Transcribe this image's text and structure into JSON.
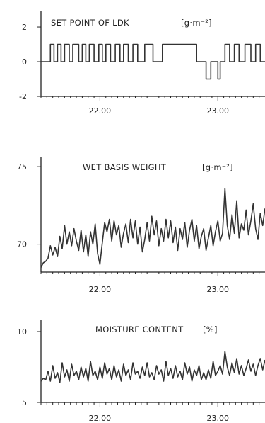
{
  "chart_data": [
    {
      "type": "line",
      "title": "SET POINT OF LDK",
      "unit": "[g·m⁻²]",
      "ylim": [
        -2,
        2.9
      ],
      "yticks": [
        2,
        0,
        -2
      ],
      "xlim": [
        21.5,
        23.4
      ],
      "xticks": [
        "22.00",
        "23.00"
      ],
      "xtick_values": [
        22.0,
        23.0
      ],
      "series": [
        {
          "x": [
            21.5,
            21.58,
            21.58,
            21.61,
            21.61,
            21.64,
            21.64,
            21.67,
            21.67,
            21.7,
            21.7,
            21.74,
            21.74,
            21.77,
            21.77,
            21.82,
            21.82,
            21.85,
            21.85,
            21.88,
            21.88,
            21.91,
            21.91,
            21.95,
            21.95,
            21.99,
            21.99,
            22.02,
            22.02,
            22.05,
            22.05,
            22.09,
            22.09,
            22.13,
            22.13,
            22.17,
            22.17,
            22.2,
            22.2,
            22.24,
            22.24,
            22.28,
            22.28,
            22.32,
            22.32,
            22.38,
            22.38,
            22.45,
            22.45,
            22.53,
            22.53,
            22.82,
            22.82,
            22.9,
            22.9,
            22.94,
            22.94,
            23.0,
            23.0,
            23.02,
            23.02,
            23.06,
            23.06,
            23.1,
            23.1,
            23.14,
            23.14,
            23.18,
            23.18,
            23.23,
            23.23,
            23.28,
            23.28,
            23.32,
            23.32,
            23.36,
            23.36,
            23.4
          ],
          "values": [
            0,
            0,
            1,
            1,
            0,
            0,
            1,
            1,
            0,
            0,
            1,
            1,
            0,
            0,
            1,
            1,
            0,
            0,
            1,
            1,
            0,
            0,
            1,
            1,
            0,
            0,
            1,
            1,
            0,
            0,
            1,
            1,
            0,
            0,
            1,
            1,
            0,
            0,
            1,
            1,
            0,
            0,
            1,
            1,
            0,
            0,
            1,
            1,
            0,
            0,
            1,
            1,
            0,
            0,
            -1,
            -1,
            0,
            0,
            -1,
            -1,
            0,
            0,
            1,
            1,
            0,
            0,
            1,
            1,
            0,
            0,
            1,
            1,
            0,
            0,
            1,
            1,
            0,
            0
          ]
        }
      ]
    },
    {
      "type": "line",
      "title": "WET BASIS WEIGHT",
      "unit": "[g·m⁻²]",
      "ylim": [
        68.2,
        75.6
      ],
      "yticks": [
        75,
        70
      ],
      "xlim": [
        21.5,
        23.4
      ],
      "xticks": [
        "22.00",
        "23.00"
      ],
      "xtick_values": [
        22.0,
        23.0
      ],
      "series": [
        {
          "x": [
            21.5,
            21.52,
            21.54,
            21.56,
            21.58,
            21.6,
            21.62,
            21.64,
            21.66,
            21.68,
            21.7,
            21.72,
            21.74,
            21.76,
            21.78,
            21.8,
            21.82,
            21.84,
            21.86,
            21.88,
            21.9,
            21.92,
            21.94,
            21.96,
            21.98,
            22.0,
            22.02,
            22.04,
            22.06,
            22.08,
            22.1,
            22.12,
            22.14,
            22.16,
            22.18,
            22.2,
            22.22,
            22.24,
            22.26,
            22.28,
            22.3,
            22.32,
            22.34,
            22.36,
            22.38,
            22.4,
            22.42,
            22.44,
            22.46,
            22.48,
            22.5,
            22.52,
            22.54,
            22.56,
            22.58,
            22.6,
            22.62,
            22.64,
            22.66,
            22.68,
            22.7,
            22.72,
            22.74,
            22.76,
            22.78,
            22.8,
            22.82,
            22.84,
            22.86,
            22.88,
            22.9,
            22.92,
            22.94,
            22.96,
            22.98,
            23.0,
            23.02,
            23.04,
            23.06,
            23.08,
            23.1,
            23.12,
            23.14,
            23.16,
            23.18,
            23.2,
            23.22,
            23.24,
            23.26,
            23.28,
            23.3,
            23.32,
            23.34,
            23.36,
            23.38,
            23.4
          ],
          "values": [
            68.5,
            68.8,
            68.9,
            69.1,
            69.9,
            69.3,
            69.8,
            69.2,
            70.5,
            69.7,
            71.2,
            70.0,
            70.8,
            69.9,
            71.0,
            70.2,
            69.6,
            70.9,
            69.5,
            70.6,
            69.2,
            70.8,
            70.0,
            71.3,
            69.4,
            68.7,
            70.1,
            71.4,
            70.8,
            71.6,
            70.2,
            71.5,
            70.6,
            71.2,
            69.8,
            70.7,
            71.3,
            70.1,
            71.6,
            70.4,
            71.5,
            70.0,
            71.1,
            69.5,
            70.3,
            71.4,
            70.2,
            71.8,
            70.6,
            71.5,
            69.9,
            71.0,
            70.2,
            71.6,
            70.4,
            71.5,
            70.1,
            71.1,
            69.6,
            71.0,
            70.3,
            71.4,
            69.8,
            70.9,
            71.6,
            70.2,
            71.2,
            69.7,
            70.5,
            71.0,
            69.6,
            70.4,
            71.2,
            69.9,
            70.8,
            71.5,
            70.2,
            70.7,
            73.6,
            71.2,
            70.3,
            71.9,
            70.7,
            72.8,
            70.4,
            71.3,
            70.9,
            72.2,
            70.6,
            71.5,
            72.6,
            71.0,
            70.3,
            72.0,
            71.2,
            72.3
          ]
        }
      ]
    },
    {
      "type": "line",
      "title": "MOISTURE CONTENT",
      "unit": "[%]",
      "ylim": [
        5,
        10.8
      ],
      "yticks": [
        10,
        5
      ],
      "xlim": [
        21.5,
        23.4
      ],
      "xticks": [
        "22.00",
        "23.00"
      ],
      "xtick_values": [
        22.0,
        23.0
      ],
      "series": [
        {
          "x": [
            21.5,
            21.52,
            21.54,
            21.56,
            21.58,
            21.6,
            21.62,
            21.64,
            21.66,
            21.68,
            21.7,
            21.72,
            21.74,
            21.76,
            21.78,
            21.8,
            21.82,
            21.84,
            21.86,
            21.88,
            21.9,
            21.92,
            21.94,
            21.96,
            21.98,
            22.0,
            22.02,
            22.04,
            22.06,
            22.08,
            22.1,
            22.12,
            22.14,
            22.16,
            22.18,
            22.2,
            22.22,
            22.24,
            22.26,
            22.28,
            22.3,
            22.32,
            22.34,
            22.36,
            22.38,
            22.4,
            22.42,
            22.44,
            22.46,
            22.48,
            22.5,
            22.52,
            22.54,
            22.56,
            22.58,
            22.6,
            22.62,
            22.64,
            22.66,
            22.68,
            22.7,
            22.72,
            22.74,
            22.76,
            22.78,
            22.8,
            22.82,
            22.84,
            22.86,
            22.88,
            22.9,
            22.92,
            22.94,
            22.96,
            22.98,
            23.0,
            23.02,
            23.04,
            23.06,
            23.08,
            23.1,
            23.12,
            23.14,
            23.16,
            23.18,
            23.2,
            23.22,
            23.24,
            23.26,
            23.28,
            23.3,
            23.32,
            23.34,
            23.36,
            23.38,
            23.4
          ],
          "values": [
            6.5,
            6.7,
            6.6,
            7.2,
            6.5,
            7.6,
            6.7,
            7.1,
            6.4,
            7.8,
            6.8,
            7.3,
            6.5,
            7.7,
            6.9,
            7.2,
            6.6,
            7.5,
            6.8,
            7.4,
            6.5,
            7.9,
            6.9,
            7.2,
            6.6,
            7.5,
            6.7,
            7.8,
            7.0,
            7.4,
            6.6,
            7.6,
            6.8,
            7.3,
            6.5,
            7.7,
            6.9,
            7.3,
            6.6,
            7.8,
            7.0,
            7.2,
            6.7,
            7.5,
            6.9,
            7.8,
            6.8,
            7.1,
            6.6,
            7.6,
            7.0,
            7.3,
            6.5,
            7.9,
            6.9,
            7.4,
            6.7,
            7.6,
            6.8,
            7.2,
            6.6,
            7.8,
            7.0,
            7.5,
            6.5,
            7.3,
            6.9,
            7.6,
            6.6,
            7.1,
            6.6,
            7.3,
            6.7,
            7.9,
            6.9,
            7.2,
            7.6,
            7.0,
            8.6,
            7.5,
            6.9,
            7.8,
            7.1,
            8.1,
            7.0,
            7.6,
            6.9,
            7.4,
            8.0,
            7.2,
            7.7,
            6.9,
            7.6,
            8.1,
            7.3,
            8.0
          ]
        }
      ]
    }
  ]
}
